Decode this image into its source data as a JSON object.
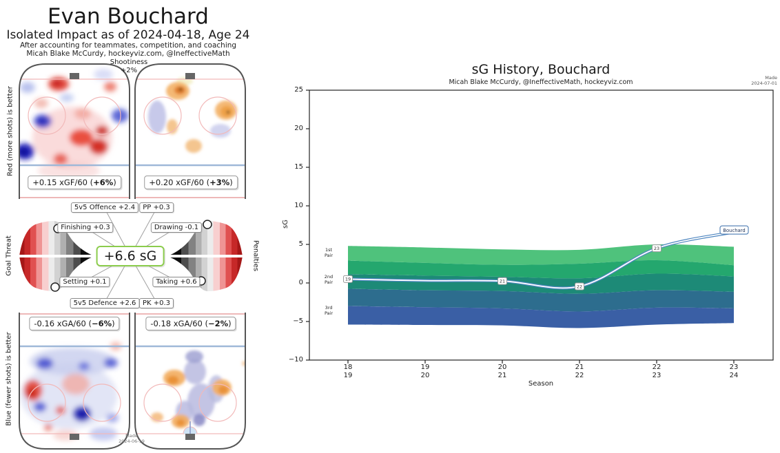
{
  "player": {
    "name": "Evan Bouchard",
    "subtitle": "Isolated Impact as of 2024-04-18, Age 24",
    "note": "After accounting for teammates, competition, and coaching",
    "credit": "Micah Blake McCurdy, hockeyviz.com, @IneffectiveMath",
    "made_label": "Made",
    "made_date": "2024-06-19"
  },
  "shootiness": {
    "label": "Shootiness",
    "value": "+2%"
  },
  "offence": {
    "ev_box": {
      "prefix": "+0.15 xGF/60 (",
      "bold": "+6%",
      "suffix": ")"
    },
    "pp_box": {
      "prefix": "+0.20 xGF/60 (",
      "bold": "+3%",
      "suffix": ")"
    }
  },
  "defence": {
    "ev_box": {
      "prefix": "-0.16 xGA/60 (",
      "bold": "−6%",
      "suffix": ")"
    },
    "pk_box": {
      "prefix": "-0.18 xGA/60 (",
      "bold": "−2%",
      "suffix": ")"
    }
  },
  "impact": {
    "total": "+6.6 sG",
    "offence5v5": "5v5 Offence +2.4",
    "pp": "PP +0.3",
    "finishing": "Finishing +0.3",
    "drawing": "Drawing -0.1",
    "setting": "Setting +0.1",
    "taking": "Taking +0.6",
    "defence5v5": "5v5 Defence +2.6",
    "pk": "PK +0.3"
  },
  "side_labels": {
    "top_left": "Red (more shots) is better",
    "mid_left": "Goal Threat",
    "bottom_left": "Blue (fewer shots) is better",
    "mid_right": "Penalties"
  },
  "chart_data": {
    "type": "area",
    "title": "sG History, Bouchard",
    "subtitle": "Micah Blake McCurdy, @IneffectiveMath, hockeyviz.com",
    "made_label": "Made",
    "made_date": "2024-07-01",
    "xlabel": "Season",
    "ylabel": "sG",
    "ylim": [
      -10,
      25
    ],
    "yticks": [
      25,
      20,
      15,
      10,
      5,
      0,
      -5,
      -10
    ],
    "ytick_labels": [
      "25",
      "20",
      "15",
      "10",
      "5",
      "0",
      "−5",
      "−10"
    ],
    "x_ticks": [
      {
        "top": "18",
        "bottom": "19"
      },
      {
        "top": "19",
        "bottom": "20"
      },
      {
        "top": "20",
        "bottom": "21"
      },
      {
        "top": "21",
        "bottom": "22"
      },
      {
        "top": "22",
        "bottom": "23"
      },
      {
        "top": "23",
        "bottom": "24"
      }
    ],
    "seasons": [
      "18/19",
      "19/20",
      "20/21",
      "21/22",
      "22/23",
      "23/24"
    ],
    "player_line": {
      "name": "Bouchard",
      "values": [
        0.5,
        0.3,
        0.25,
        -0.45,
        4.5,
        6.6
      ],
      "markers": [
        {
          "label": "19",
          "season_index": 0
        },
        {
          "label": "21",
          "season_index": 2
        },
        {
          "label": "22",
          "season_index": 3
        },
        {
          "label": "23",
          "season_index": 4
        }
      ],
      "color": "#4e86c0"
    },
    "bands": {
      "pair_labels": [
        {
          "l1": "1st",
          "l2": "Pair"
        },
        {
          "l1": "2nd",
          "l2": "Pair"
        },
        {
          "l1": "3rd",
          "l2": "Pair"
        }
      ],
      "colors": [
        "#4fc27c",
        "#24a76e",
        "#1d8a77",
        "#2d6d8e",
        "#3a5fa5"
      ],
      "boundaries": [
        [
          4.8,
          4.6,
          4.35,
          4.3,
          5.0,
          4.7
        ],
        [
          2.9,
          2.6,
          2.35,
          2.5,
          2.95,
          2.3
        ],
        [
          1.15,
          0.95,
          0.8,
          0.6,
          1.2,
          0.85
        ],
        [
          -0.75,
          -0.95,
          -1.05,
          -1.4,
          -0.95,
          -1.15
        ],
        [
          -3.0,
          -3.15,
          -3.3,
          -3.7,
          -3.2,
          -3.3
        ],
        [
          -5.4,
          -5.45,
          -5.5,
          -5.85,
          -5.4,
          -5.2
        ]
      ]
    }
  }
}
